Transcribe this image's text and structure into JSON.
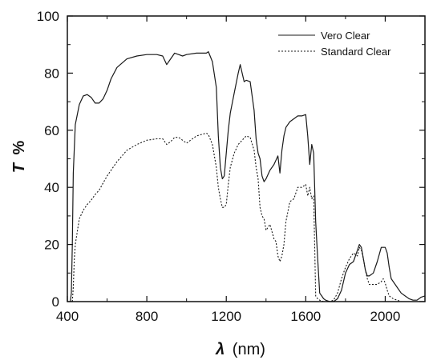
{
  "chart_data": {
    "type": "line",
    "xlabel_symbol": "λ",
    "xlabel_unit": "(nm)",
    "ylabel_symbol": "T",
    "ylabel_unit": "%",
    "xlim": [
      400,
      2200
    ],
    "ylim": [
      0,
      100
    ],
    "xticks": [
      400,
      800,
      1200,
      1600,
      2000
    ],
    "yticks": [
      0,
      20,
      40,
      60,
      80,
      100
    ],
    "grid": false,
    "legend_position": "top-right",
    "series": [
      {
        "name": "Vero Clear",
        "style": "solid",
        "color": "#1a1a1a",
        "x": [
          415,
          420,
          425,
          430,
          440,
          460,
          480,
          500,
          520,
          540,
          560,
          580,
          600,
          620,
          650,
          700,
          750,
          800,
          850,
          880,
          900,
          920,
          940,
          960,
          980,
          1000,
          1050,
          1100,
          1110,
          1130,
          1150,
          1160,
          1170,
          1180,
          1190,
          1200,
          1210,
          1220,
          1240,
          1260,
          1270,
          1280,
          1290,
          1300,
          1320,
          1340,
          1350,
          1360,
          1370,
          1380,
          1390,
          1400,
          1420,
          1440,
          1460,
          1470,
          1480,
          1490,
          1500,
          1520,
          1540,
          1560,
          1580,
          1600,
          1610,
          1620,
          1630,
          1640,
          1650,
          1660,
          1670,
          1680,
          1690,
          1700,
          1720,
          1740,
          1760,
          1780,
          1800,
          1820,
          1840,
          1860,
          1870,
          1880,
          1890,
          1900,
          1910,
          1920,
          1940,
          1960,
          1980,
          2000,
          2010,
          2020,
          2030,
          2040,
          2060,
          2080,
          2100,
          2120,
          2140,
          2160,
          2180,
          2200
        ],
        "y": [
          0,
          3,
          20,
          45,
          62,
          69,
          72,
          72.5,
          71.5,
          69.5,
          69.5,
          71,
          74,
          78,
          82,
          85,
          86,
          86.5,
          86.5,
          86,
          83,
          85,
          87,
          86.5,
          86,
          86.5,
          87,
          87,
          87.5,
          84,
          75,
          58,
          47,
          43,
          44,
          52,
          60,
          66,
          73,
          80,
          83,
          80,
          77,
          77.5,
          77,
          67,
          57,
          52,
          50,
          44,
          42,
          43,
          46,
          48,
          51,
          45,
          53,
          58,
          61,
          63,
          64,
          65,
          65,
          65.5,
          58,
          48,
          55,
          52,
          28,
          15,
          3,
          2,
          1,
          0.5,
          0,
          0,
          1,
          4,
          10,
          13,
          14,
          18,
          20,
          19,
          15,
          11,
          9,
          9,
          10,
          14,
          19,
          19,
          17,
          12,
          8,
          7,
          5,
          3,
          2,
          1,
          0.5,
          0.5,
          1.5,
          2
        ],
        "dash": ""
      },
      {
        "name": "Standard Clear",
        "style": "dotted",
        "color": "#1a1a1a",
        "x": [
          425,
          430,
          435,
          440,
          460,
          480,
          500,
          520,
          540,
          560,
          580,
          600,
          620,
          650,
          700,
          750,
          800,
          850,
          880,
          900,
          920,
          940,
          960,
          980,
          1000,
          1050,
          1100,
          1110,
          1130,
          1150,
          1160,
          1170,
          1180,
          1190,
          1200,
          1210,
          1220,
          1240,
          1260,
          1280,
          1300,
          1320,
          1340,
          1350,
          1360,
          1370,
          1380,
          1390,
          1400,
          1420,
          1440,
          1450,
          1460,
          1470,
          1480,
          1490,
          1500,
          1520,
          1540,
          1560,
          1580,
          1600,
          1610,
          1620,
          1630,
          1640,
          1650,
          1660,
          1670,
          1680,
          1690,
          1700,
          1720,
          1740,
          1760,
          1780,
          1800,
          1820,
          1840,
          1860,
          1870,
          1880,
          1890,
          1900,
          1910,
          1920,
          1940,
          1960,
          1980,
          1990,
          2000,
          2010,
          2020,
          2040,
          2060,
          2080,
          2100,
          2120,
          2140,
          2160,
          2180,
          2200
        ],
        "y": [
          0,
          5,
          15,
          20,
          29,
          32,
          34,
          35.5,
          37.5,
          39,
          41.5,
          44,
          46,
          49,
          53,
          55,
          56.5,
          57,
          57,
          55,
          56,
          57.5,
          57.5,
          56.5,
          55.5,
          58,
          59,
          58.5,
          55,
          47,
          40,
          36,
          33,
          33,
          34,
          41,
          47,
          52,
          55,
          56.5,
          58,
          57.5,
          53,
          47,
          43,
          33,
          30,
          29,
          25,
          27,
          22,
          21,
          16,
          14,
          16,
          20,
          28,
          35,
          36,
          40,
          40,
          41,
          37,
          40,
          36,
          37,
          2,
          1,
          0.5,
          0.2,
          0,
          0,
          0,
          0.5,
          3,
          8,
          12,
          15,
          17,
          16,
          19,
          18,
          15,
          11,
          8,
          6,
          6,
          6,
          7,
          8,
          6.5,
          4,
          2,
          1,
          0.5,
          0,
          0,
          0,
          0,
          0,
          0,
          0
        ],
        "dash": "2,2"
      }
    ]
  }
}
